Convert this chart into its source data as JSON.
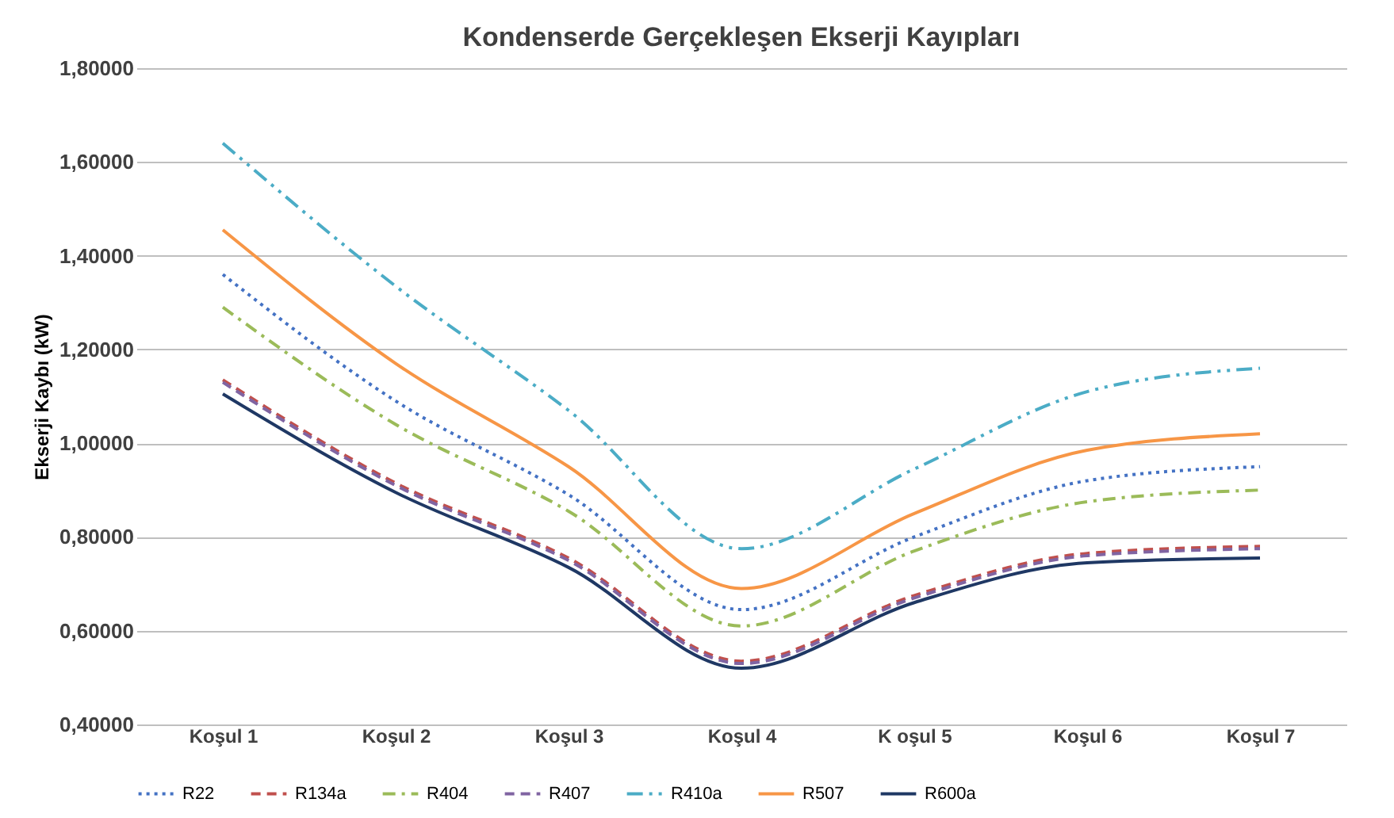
{
  "chart_data": {
    "type": "line",
    "title": "Kondenserde Gerçekleşen Ekserji Kayıpları",
    "ylabel": "Ekserji Kaybı (kW)",
    "categories": [
      "Koşul 1",
      "Koşul 2",
      "Koşul 3",
      "Koşul 4",
      "K oşul 5",
      "Koşul 6",
      "Koşul 7"
    ],
    "series": [
      {
        "name": "R22",
        "color": "#4472c4",
        "line_style": "dotted",
        "values": [
          1.36,
          1.09,
          0.89,
          0.645,
          0.8,
          0.92,
          0.95
        ]
      },
      {
        "name": "R134a",
        "color": "#c0504d",
        "line_style": "dashed",
        "values": [
          1.135,
          0.915,
          0.755,
          0.535,
          0.675,
          0.765,
          0.78
        ]
      },
      {
        "name": "R404",
        "color": "#9bbb59",
        "line_style": "dashdot",
        "values": [
          1.29,
          1.04,
          0.855,
          0.61,
          0.77,
          0.875,
          0.9
        ]
      },
      {
        "name": "R407",
        "color": "#8064a2",
        "line_style": "dashed",
        "values": [
          1.13,
          0.91,
          0.75,
          0.53,
          0.67,
          0.76,
          0.775
        ]
      },
      {
        "name": "R410a",
        "color": "#4bacc6",
        "line_style": "dashdotdot",
        "values": [
          1.64,
          1.335,
          1.07,
          0.775,
          0.945,
          1.11,
          1.16
        ]
      },
      {
        "name": "R507",
        "color": "#f79646",
        "line_style": "solid",
        "values": [
          1.455,
          1.17,
          0.95,
          0.69,
          0.85,
          0.985,
          1.02
        ]
      },
      {
        "name": "R600a",
        "color": "#1f3864",
        "line_style": "solid",
        "values": [
          1.105,
          0.895,
          0.735,
          0.52,
          0.66,
          0.745,
          0.755
        ]
      }
    ],
    "ylim": [
      0.4,
      1.8
    ],
    "yticks": [
      {
        "value": 0.4,
        "label": "0,40000"
      },
      {
        "value": 0.6,
        "label": "0,60000"
      },
      {
        "value": 0.8,
        "label": "0,80000"
      },
      {
        "value": 1.0,
        "label": "1,00000"
      },
      {
        "value": 1.2,
        "label": "1,20000"
      },
      {
        "value": 1.4,
        "label": "1,40000"
      },
      {
        "value": 1.6,
        "label": "1,60000"
      },
      {
        "value": 1.8,
        "label": "1,80000"
      }
    ],
    "grid": "y",
    "legend": "bottom",
    "marker": "none"
  }
}
